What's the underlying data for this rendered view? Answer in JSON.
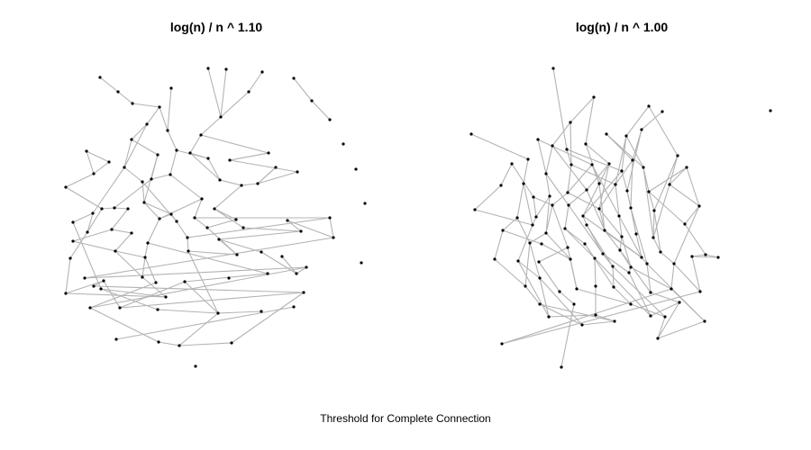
{
  "panels": [
    {
      "title": "log(n) / n ^ 1.10"
    },
    {
      "title": "log(n) / n ^ 1.00"
    }
  ],
  "caption": "Threshold for Complete Connection",
  "colors": {
    "edge": "#b3b3b3",
    "node": "#000000",
    "background": "#ffffff"
  }
}
